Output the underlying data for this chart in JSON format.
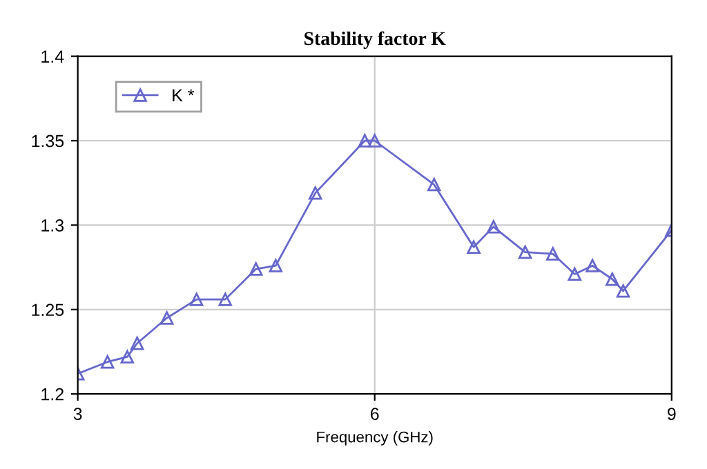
{
  "chart_data": {
    "type": "line",
    "title": "Stability factor K",
    "xlabel": "Frequency (GHz)",
    "series": [
      {
        "name": "K *",
        "color": "#6666cc",
        "x": [
          3,
          3.3,
          3.5,
          3.6,
          3.9,
          4.2,
          4.49,
          4.8,
          5.0,
          5.4,
          5.9,
          6,
          6.6,
          7.0,
          7.2,
          7.52,
          7.8,
          8.02,
          8.2,
          8.4,
          8.51,
          9
        ],
        "values": [
          1.212,
          1.219,
          1.222,
          1.23,
          1.245,
          1.256,
          1.256,
          1.274,
          1.276,
          1.319,
          1.35,
          1.35,
          1.324,
          1.287,
          1.299,
          1.284,
          1.283,
          1.271,
          1.276,
          1.268,
          1.261,
          1.297
        ]
      }
    ],
    "xlim": [
      3,
      9
    ],
    "xticks": [
      3,
      6,
      9
    ],
    "ylim": [
      1.2,
      1.4
    ],
    "yticks": [
      1.2,
      1.25,
      1.3,
      1.35,
      1.4
    ],
    "grid": true,
    "legend": "top left",
    "marker": "triangle",
    "line_style": "solid"
  }
}
